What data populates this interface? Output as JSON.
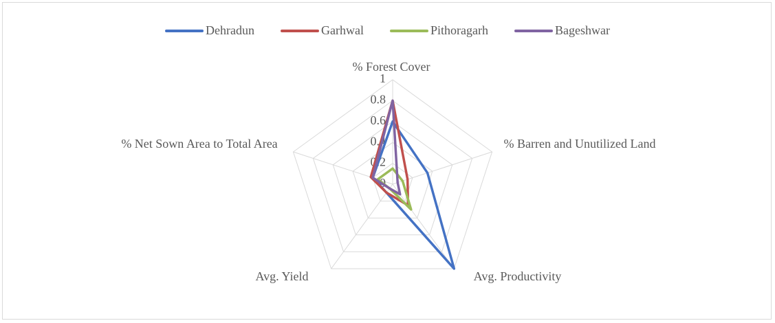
{
  "chart_data": {
    "type": "radar",
    "categories": [
      "% Forest Cover",
      "% Barren and Unutilized Land",
      "Avg. Productivity",
      "Avg. Yield",
      "% Net Sown Area to Total Area"
    ],
    "series": [
      {
        "name": "Dehradun",
        "color": "#4472c4",
        "values": [
          0.6,
          0.35,
          1,
          0.1,
          0.2
        ]
      },
      {
        "name": "Garhwal",
        "color": "#c0504d",
        "values": [
          0.8,
          0.15,
          0.25,
          0.1,
          0.22
        ]
      },
      {
        "name": "Pithoragarh",
        "color": "#9bbb59",
        "values": [
          0.15,
          0.1,
          0.3,
          0.05,
          0.15
        ]
      },
      {
        "name": "Bageshwar",
        "color": "#8064a2",
        "values": [
          0.8,
          0.05,
          0.12,
          0.05,
          0.2
        ]
      }
    ],
    "ylim": [
      0,
      1
    ],
    "yticks": [
      0,
      0.2,
      0.4,
      0.6,
      0.8,
      1
    ],
    "grid": true,
    "legend": "top"
  }
}
